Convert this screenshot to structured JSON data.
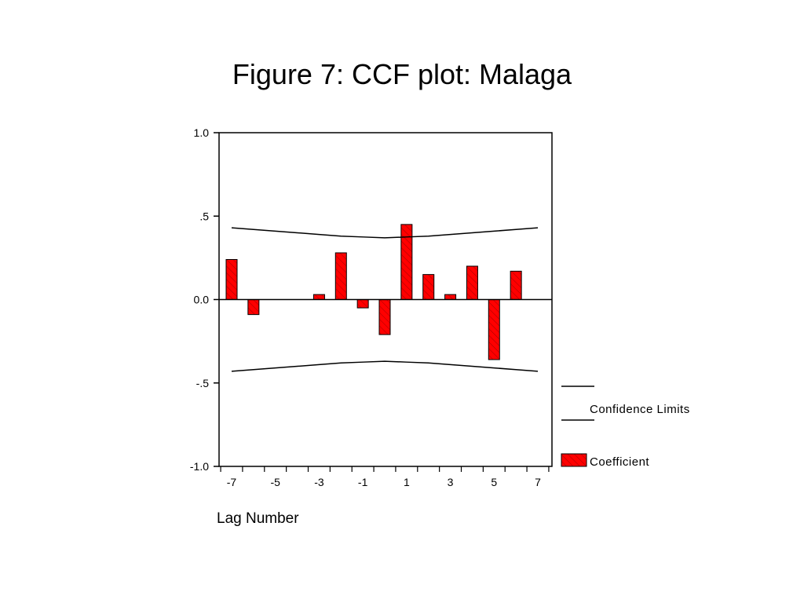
{
  "title": "Figure 7: CCF plot: Malaga",
  "chart_data": {
    "type": "bar",
    "xlabel": "Lag Number",
    "ylabel": "",
    "ylim": [
      -1.0,
      1.0
    ],
    "y_ticks": [
      {
        "value": 1.0,
        "label": "1.0"
      },
      {
        "value": 0.5,
        "label": ".5"
      },
      {
        "value": 0.0,
        "label": "0.0"
      },
      {
        "value": -0.5,
        "label": "-.5"
      },
      {
        "value": -1.0,
        "label": "-1.0"
      }
    ],
    "x_tick_labels": [
      "-7",
      "-5",
      "-3",
      "-1",
      "1",
      "3",
      "5",
      "7"
    ],
    "x": [
      -7,
      -6,
      -5,
      -4,
      -3,
      -2,
      -1,
      0,
      1,
      2,
      3,
      4,
      5,
      6,
      7
    ],
    "series": [
      {
        "name": "Coefficient",
        "color": "#ff0000",
        "values": [
          0.24,
          -0.09,
          0.0,
          0.0,
          0.03,
          0.28,
          -0.05,
          -0.21,
          0.45,
          0.15,
          0.03,
          0.2,
          -0.36,
          0.17,
          0.0
        ]
      },
      {
        "name": "Confidence Limits",
        "type": "line",
        "color": "#000000",
        "upper": [
          0.43,
          0.42,
          0.41,
          0.4,
          0.39,
          0.38,
          0.375,
          0.37,
          0.375,
          0.38,
          0.39,
          0.4,
          0.41,
          0.42,
          0.43
        ],
        "lower": [
          -0.43,
          -0.42,
          -0.41,
          -0.4,
          -0.39,
          -0.38,
          -0.375,
          -0.37,
          -0.375,
          -0.38,
          -0.39,
          -0.4,
          -0.41,
          -0.42,
          -0.43
        ]
      }
    ],
    "legend": {
      "position": "right",
      "items": [
        {
          "label": "Confidence Limits",
          "kind": "line"
        },
        {
          "label": "Coefficient",
          "kind": "bar"
        }
      ]
    },
    "grid": false
  }
}
